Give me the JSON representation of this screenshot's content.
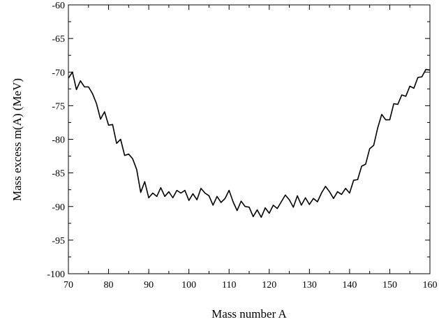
{
  "chart_data": {
    "type": "line",
    "title": "",
    "xlabel": "Mass number A",
    "ylabel": "Mass excess m(A) (MeV)",
    "xlim": [
      70,
      160
    ],
    "ylim": [
      -100,
      -60
    ],
    "x_ticks": [
      70,
      80,
      90,
      100,
      110,
      120,
      130,
      140,
      150,
      160
    ],
    "x_tick_labels": [
      "70",
      "80",
      "90",
      "100",
      "110",
      "120",
      "130",
      "140",
      "150",
      "160"
    ],
    "y_ticks": [
      -60,
      -65,
      -70,
      -75,
      -80,
      -85,
      -90,
      -95,
      -100
    ],
    "y_tick_labels": [
      "-60",
      "-65",
      "-70",
      "-75",
      "-80",
      "-85",
      "-90",
      "-95",
      "-100"
    ],
    "grid": false,
    "line_color": "#000000",
    "series": [
      {
        "x": [
          70,
          71,
          72,
          73,
          74,
          75,
          76,
          77,
          78,
          79,
          80,
          81,
          82,
          83,
          84,
          85,
          86,
          87,
          88,
          89,
          90,
          91,
          92,
          93,
          94,
          95,
          96,
          97,
          98,
          99,
          100,
          101,
          102,
          103,
          104,
          105,
          106,
          107,
          108,
          109,
          110,
          111,
          112,
          113,
          114,
          115,
          116,
          117,
          118,
          119,
          120,
          121,
          122,
          123,
          124,
          125,
          126,
          127,
          128,
          129,
          130,
          131,
          132,
          133,
          134,
          135,
          136,
          137,
          138,
          139,
          140,
          141,
          142,
          143,
          144,
          145,
          146,
          147,
          148,
          149,
          150,
          151,
          152,
          153,
          154,
          155,
          156,
          157,
          158,
          159,
          160
        ],
        "y": [
          -70.9,
          -70.0,
          -72.6,
          -71.3,
          -72.2,
          -72.2,
          -73.2,
          -74.7,
          -77.0,
          -75.9,
          -77.9,
          -77.8,
          -80.6,
          -80.0,
          -82.4,
          -82.2,
          -82.9,
          -84.5,
          -87.9,
          -86.3,
          -88.7,
          -88.0,
          -88.5,
          -87.2,
          -88.5,
          -87.8,
          -88.7,
          -87.6,
          -88.0,
          -87.6,
          -89.1,
          -88.1,
          -89.0,
          -87.3,
          -88.0,
          -88.4,
          -89.8,
          -88.5,
          -89.4,
          -88.8,
          -87.6,
          -89.3,
          -90.6,
          -89.2,
          -90.0,
          -90.1,
          -91.5,
          -90.5,
          -91.6,
          -90.2,
          -91.0,
          -89.8,
          -90.3,
          -89.3,
          -88.3,
          -89.0,
          -90.1,
          -88.4,
          -89.8,
          -88.7,
          -89.7,
          -88.8,
          -89.3,
          -88.0,
          -87.0,
          -87.8,
          -88.8,
          -87.8,
          -88.2,
          -87.3,
          -88.0,
          -86.1,
          -86.0,
          -84.0,
          -83.7,
          -81.4,
          -80.9,
          -78.3,
          -76.3,
          -77.1,
          -77.1,
          -74.7,
          -74.8,
          -73.4,
          -73.6,
          -72.1,
          -72.4,
          -70.8,
          -70.7,
          -69.6,
          -69.7
        ]
      }
    ]
  }
}
